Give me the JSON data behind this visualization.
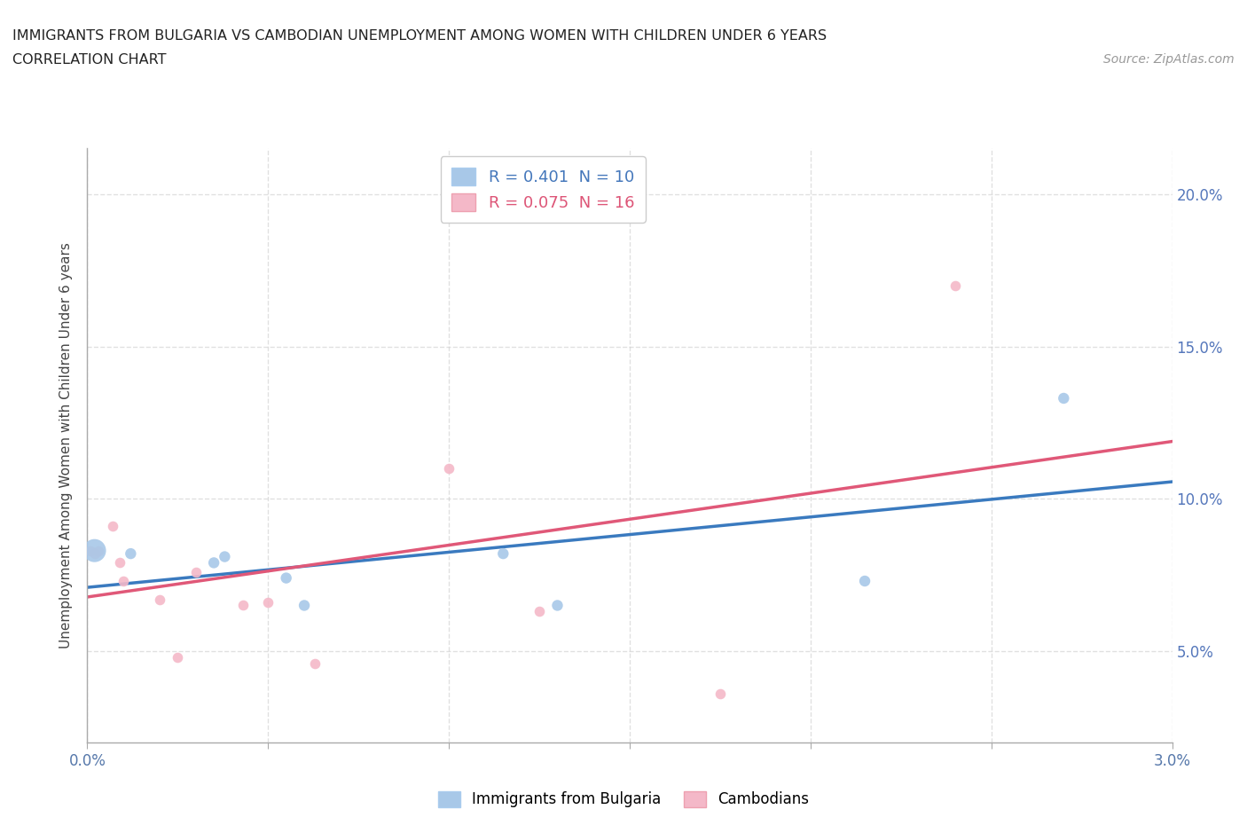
{
  "title_line1": "IMMIGRANTS FROM BULGARIA VS CAMBODIAN UNEMPLOYMENT AMONG WOMEN WITH CHILDREN UNDER 6 YEARS",
  "title_line2": "CORRELATION CHART",
  "source_text": "Source: ZipAtlas.com",
  "ylabel": "Unemployment Among Women with Children Under 6 years",
  "xlim": [
    0.0,
    0.03
  ],
  "ylim": [
    0.02,
    0.215
  ],
  "yticks": [
    0.05,
    0.1,
    0.15,
    0.2
  ],
  "ytick_labels": [
    "5.0%",
    "10.0%",
    "15.0%",
    "20.0%"
  ],
  "xticks": [
    0.0,
    0.005,
    0.01,
    0.015,
    0.02,
    0.025,
    0.03
  ],
  "xtick_labels": [
    "0.0%",
    "",
    "",
    "",
    "",
    "",
    "3.0%"
  ],
  "legend_r1": "R = 0.401  N = 10",
  "legend_r2": "R = 0.075  N = 16",
  "color_blue": "#a8c8e8",
  "color_pink": "#f4b8c8",
  "trendline_blue": "#3a7abf",
  "trendline_pink": "#e05878",
  "blue_points": [
    [
      0.0002,
      0.083
    ],
    [
      0.0012,
      0.082
    ],
    [
      0.0035,
      0.079
    ],
    [
      0.0038,
      0.081
    ],
    [
      0.0055,
      0.074
    ],
    [
      0.006,
      0.065
    ],
    [
      0.0115,
      0.082
    ],
    [
      0.013,
      0.065
    ],
    [
      0.0215,
      0.073
    ],
    [
      0.027,
      0.133
    ]
  ],
  "blue_sizes": [
    350,
    80,
    80,
    80,
    80,
    80,
    80,
    80,
    80,
    80
  ],
  "pink_points": [
    [
      0.0001,
      0.083
    ],
    [
      0.0002,
      0.082
    ],
    [
      0.0003,
      0.083
    ],
    [
      0.0007,
      0.091
    ],
    [
      0.0009,
      0.079
    ],
    [
      0.001,
      0.073
    ],
    [
      0.002,
      0.067
    ],
    [
      0.0025,
      0.048
    ],
    [
      0.003,
      0.076
    ],
    [
      0.0043,
      0.065
    ],
    [
      0.005,
      0.066
    ],
    [
      0.0063,
      0.046
    ],
    [
      0.01,
      0.11
    ],
    [
      0.0125,
      0.063
    ],
    [
      0.0175,
      0.036
    ],
    [
      0.024,
      0.17
    ]
  ],
  "pink_size": 70,
  "background_color": "#ffffff",
  "grid_color": "#cccccc",
  "grid_style": "--",
  "grid_alpha": 0.6,
  "axis_color": "#aaaaaa"
}
